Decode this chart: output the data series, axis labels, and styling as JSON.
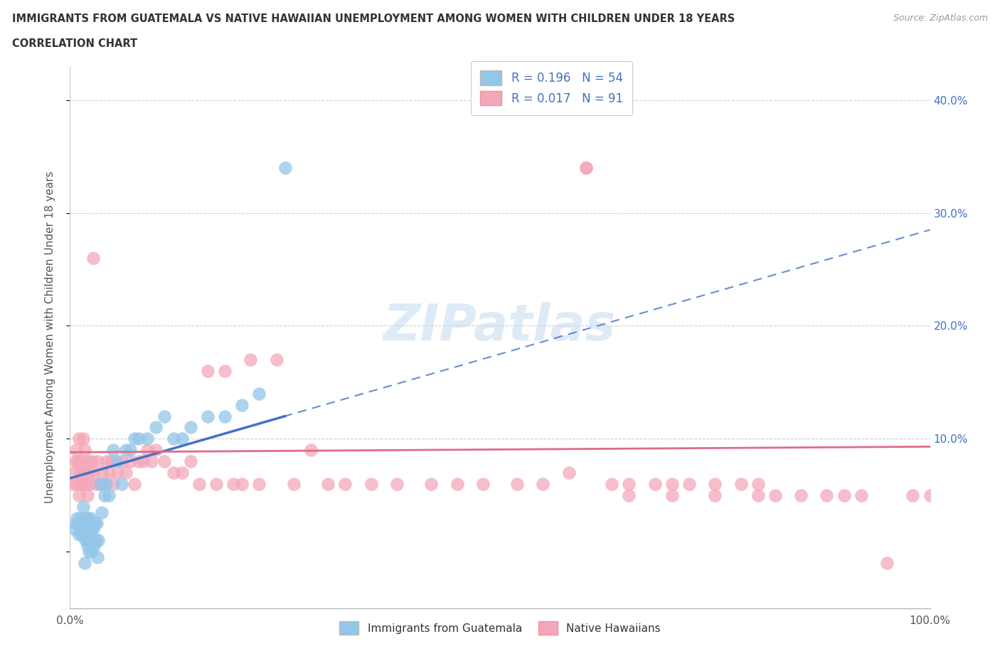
{
  "title_line1": "IMMIGRANTS FROM GUATEMALA VS NATIVE HAWAIIAN UNEMPLOYMENT AMONG WOMEN WITH CHILDREN UNDER 18 YEARS",
  "title_line2": "CORRELATION CHART",
  "source": "Source: ZipAtlas.com",
  "ylabel": "Unemployment Among Women with Children Under 18 years",
  "xlim": [
    0.0,
    1.0
  ],
  "ylim": [
    -0.05,
    0.43
  ],
  "blue_color": "#93c6e8",
  "pink_color": "#f4a7b9",
  "blue_line_color": "#4472c4",
  "pink_line_color": "#e06c85",
  "legend_R1": "R = 0.196",
  "legend_N1": "N = 54",
  "legend_R2": "R = 0.017",
  "legend_N2": "N = 91",
  "watermark": "ZIPatlas",
  "grid_color": "#d0d0d0",
  "background_color": "#ffffff",
  "blue_scatter_x": [
    0.005,
    0.007,
    0.008,
    0.01,
    0.01,
    0.012,
    0.013,
    0.014,
    0.015,
    0.015,
    0.016,
    0.017,
    0.018,
    0.019,
    0.02,
    0.02,
    0.021,
    0.022,
    0.022,
    0.023,
    0.024,
    0.025,
    0.025,
    0.026,
    0.027,
    0.028,
    0.029,
    0.03,
    0.031,
    0.032,
    0.033,
    0.035,
    0.037,
    0.04,
    0.042,
    0.045,
    0.05,
    0.055,
    0.06,
    0.065,
    0.07,
    0.075,
    0.08,
    0.09,
    0.1,
    0.11,
    0.12,
    0.13,
    0.14,
    0.16,
    0.18,
    0.2,
    0.22,
    0.25
  ],
  "blue_scatter_y": [
    0.02,
    0.025,
    0.03,
    0.015,
    0.025,
    0.02,
    0.03,
    0.015,
    0.02,
    0.04,
    0.025,
    -0.01,
    0.01,
    0.03,
    0.005,
    0.03,
    0.01,
    0.0,
    0.025,
    0.015,
    0.03,
    0.0,
    0.02,
    0.01,
    0.02,
    0.005,
    0.025,
    0.01,
    0.025,
    -0.005,
    0.01,
    0.06,
    0.035,
    0.05,
    0.06,
    0.05,
    0.09,
    0.08,
    0.06,
    0.09,
    0.09,
    0.1,
    0.1,
    0.1,
    0.11,
    0.12,
    0.1,
    0.1,
    0.11,
    0.12,
    0.12,
    0.13,
    0.14,
    0.34
  ],
  "pink_scatter_x": [
    0.003,
    0.005,
    0.006,
    0.007,
    0.008,
    0.009,
    0.01,
    0.01,
    0.011,
    0.012,
    0.013,
    0.014,
    0.015,
    0.015,
    0.016,
    0.017,
    0.018,
    0.019,
    0.02,
    0.021,
    0.022,
    0.023,
    0.025,
    0.027,
    0.028,
    0.03,
    0.032,
    0.035,
    0.038,
    0.04,
    0.043,
    0.045,
    0.048,
    0.05,
    0.055,
    0.06,
    0.065,
    0.07,
    0.075,
    0.08,
    0.085,
    0.09,
    0.095,
    0.1,
    0.11,
    0.12,
    0.13,
    0.14,
    0.15,
    0.16,
    0.17,
    0.18,
    0.19,
    0.2,
    0.21,
    0.22,
    0.24,
    0.26,
    0.28,
    0.3,
    0.32,
    0.35,
    0.38,
    0.42,
    0.45,
    0.48,
    0.52,
    0.55,
    0.58,
    0.6,
    0.63,
    0.65,
    0.68,
    0.7,
    0.72,
    0.75,
    0.78,
    0.8,
    0.82,
    0.85,
    0.88,
    0.9,
    0.92,
    0.95,
    0.98,
    1.0,
    0.6,
    0.65,
    0.7,
    0.75,
    0.8
  ],
  "pink_scatter_y": [
    0.06,
    0.07,
    0.08,
    0.09,
    0.06,
    0.08,
    0.05,
    0.1,
    0.07,
    0.06,
    0.08,
    0.07,
    0.06,
    0.1,
    0.07,
    0.09,
    0.06,
    0.07,
    0.05,
    0.08,
    0.07,
    0.06,
    0.08,
    0.26,
    0.07,
    0.06,
    0.08,
    0.06,
    0.07,
    0.06,
    0.08,
    0.07,
    0.08,
    0.06,
    0.07,
    0.08,
    0.07,
    0.08,
    0.06,
    0.08,
    0.08,
    0.09,
    0.08,
    0.09,
    0.08,
    0.07,
    0.07,
    0.08,
    0.06,
    0.16,
    0.06,
    0.16,
    0.06,
    0.06,
    0.17,
    0.06,
    0.17,
    0.06,
    0.09,
    0.06,
    0.06,
    0.06,
    0.06,
    0.06,
    0.06,
    0.06,
    0.06,
    0.06,
    0.07,
    0.34,
    0.06,
    0.06,
    0.06,
    0.06,
    0.06,
    0.06,
    0.06,
    0.06,
    0.05,
    0.05,
    0.05,
    0.05,
    0.05,
    -0.01,
    0.05,
    0.05,
    0.34,
    0.05,
    0.05,
    0.05,
    0.05
  ]
}
